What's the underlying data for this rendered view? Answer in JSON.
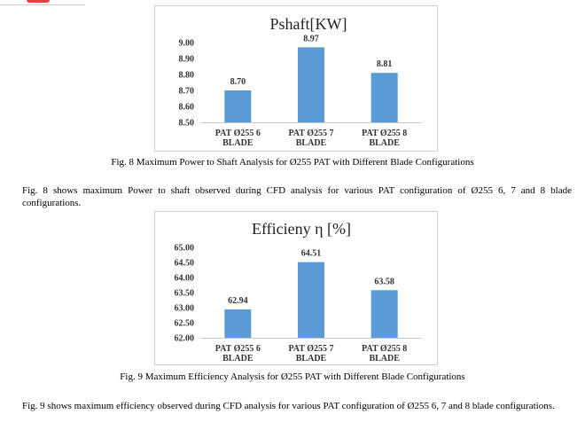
{
  "figure8": {
    "caption": "Fig. 8 Maximum Power to Shaft Analysis for Ø255 PAT with Different Blade Configurations",
    "description": "Fig. 8 shows maximum Power to shaft observed during CFD analysis for various PAT configuration of Ø255 6, 7 and 8 blade configurations."
  },
  "figure9": {
    "caption": "Fig. 9 Maximum Efficiency Analysis for Ø255 PAT with Different Blade Configurations",
    "description": "Fig. 9 shows maximum efficiency observed during CFD analysis for various PAT configuration of Ø255 6, 7 and 8 blade configurations."
  },
  "chart_data": [
    {
      "type": "bar",
      "title": "Pshaft[KW]",
      "categories": [
        [
          "PAT Ø255 6",
          "BLADE"
        ],
        [
          "PAT Ø255 7",
          "BLADE"
        ],
        [
          "PAT Ø255 8",
          "BLADE"
        ]
      ],
      "values": [
        8.7,
        8.97,
        8.81
      ],
      "value_labels": [
        "8.70",
        "8.97",
        "8.81"
      ],
      "yticks": [
        "8.50",
        "8.60",
        "8.70",
        "8.80",
        "8.90",
        "9.00"
      ],
      "ylim": [
        8.5,
        9.0
      ],
      "bar_color": "#5b9bd5",
      "grid": false,
      "legend": "none"
    },
    {
      "type": "bar",
      "title": "Efficieny  η [%]",
      "categories": [
        [
          "PAT Ø255 6",
          "BLADE"
        ],
        [
          "PAT Ø255 7",
          "BLADE"
        ],
        [
          "PAT Ø255 8",
          "BLADE"
        ]
      ],
      "values": [
        62.94,
        64.51,
        63.58
      ],
      "value_labels": [
        "62.94",
        "64.51",
        "63.58"
      ],
      "yticks": [
        "62.00",
        "62.50",
        "63.00",
        "63.50",
        "64.00",
        "64.50",
        "65.00"
      ],
      "ylim": [
        62.0,
        65.0
      ],
      "bar_color": "#5b9bd5",
      "grid": false,
      "legend": "none"
    }
  ]
}
